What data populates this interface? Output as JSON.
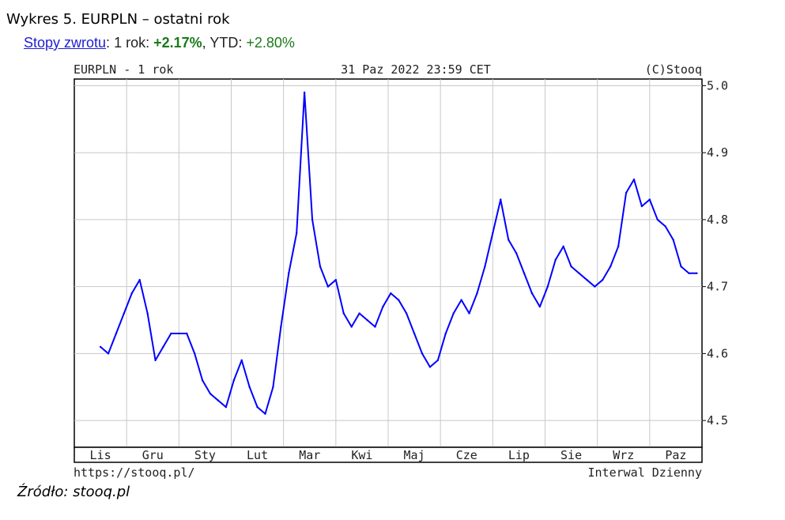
{
  "caption": {
    "title": "Wykres 5. EURPLN – ostatni rok"
  },
  "returns": {
    "link_label": "Stopy zwrotu",
    "sep": ":",
    "one_year_label": " 1 rok: ",
    "one_year_value": "+2.17%",
    "ytd_label": ", YTD: ",
    "ytd_value": "+2.80%"
  },
  "chart_header": {
    "left": "EURPLN - 1 rok",
    "center": "31 Paz 2022 23:59 CET",
    "right": "(C)Stooq"
  },
  "chart_footer": {
    "left": "https://stooq.pl/",
    "right": "Interwal Dzienny"
  },
  "source": "Źródło: stooq.pl",
  "colors": {
    "line": "#0000ff",
    "grid": "#c8c8c8",
    "frame": "#000000",
    "text": "#222222"
  },
  "chart_data": {
    "type": "line",
    "title": "EURPLN - 1 rok",
    "categories": [
      "Lis",
      "Gru",
      "Sty",
      "Lut",
      "Mar",
      "Kwi",
      "Maj",
      "Cze",
      "Lip",
      "Sie",
      "Wrz",
      "Paz"
    ],
    "ylim": [
      4.46,
      5.01
    ],
    "yticks": [
      4.5,
      4.6,
      4.7,
      4.8,
      4.9,
      5.0
    ],
    "y_axis_position": "right",
    "grid": true,
    "series": [
      {
        "x": [
          0,
          0.15,
          0.3,
          0.45,
          0.6,
          0.75,
          0.9,
          1.05,
          1.2,
          1.35,
          1.5,
          1.65,
          1.8,
          1.95,
          2.1,
          2.25,
          2.4,
          2.55,
          2.7,
          2.85,
          3.0,
          3.15,
          3.3,
          3.45,
          3.6,
          3.75,
          3.9,
          4.05,
          4.2,
          4.35,
          4.5,
          4.65,
          4.8,
          4.95,
          5.1,
          5.25,
          5.4,
          5.55,
          5.7,
          5.85,
          6.0,
          6.15,
          6.3,
          6.45,
          6.6,
          6.75,
          6.9,
          7.05,
          7.2,
          7.35,
          7.5,
          7.65,
          7.8,
          7.95,
          8.1,
          8.25,
          8.4,
          8.55,
          8.7,
          8.85,
          9.0,
          9.15,
          9.3,
          9.45,
          9.6,
          9.75,
          9.9,
          10.05,
          10.2,
          10.35,
          10.5,
          10.65,
          10.8,
          10.95,
          11.1,
          11.25,
          11.4
        ],
        "values": [
          4.61,
          4.6,
          4.63,
          4.66,
          4.69,
          4.71,
          4.66,
          4.59,
          4.61,
          4.63,
          4.63,
          4.63,
          4.6,
          4.56,
          4.54,
          4.53,
          4.52,
          4.56,
          4.59,
          4.55,
          4.52,
          4.51,
          4.55,
          4.64,
          4.72,
          4.78,
          4.99,
          4.8,
          4.73,
          4.7,
          4.71,
          4.66,
          4.64,
          4.66,
          4.65,
          4.64,
          4.67,
          4.69,
          4.68,
          4.66,
          4.63,
          4.6,
          4.58,
          4.59,
          4.63,
          4.66,
          4.68,
          4.66,
          4.69,
          4.73,
          4.78,
          4.83,
          4.77,
          4.75,
          4.72,
          4.69,
          4.67,
          4.7,
          4.74,
          4.76,
          4.73,
          4.72,
          4.71,
          4.7,
          4.71,
          4.73,
          4.76,
          4.84,
          4.86,
          4.82,
          4.83,
          4.8,
          4.79,
          4.77,
          4.73,
          4.72,
          4.72
        ]
      }
    ]
  }
}
